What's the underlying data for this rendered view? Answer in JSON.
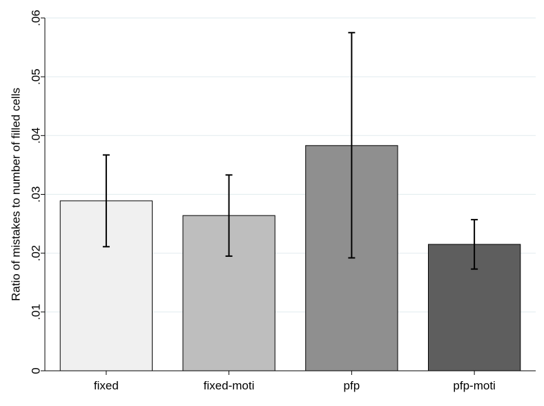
{
  "chart_data": {
    "type": "bar",
    "title": "",
    "xlabel": "",
    "ylabel": "Ratio of mistakes to number of filled cells",
    "ylim": [
      0,
      0.06
    ],
    "yticks": [
      {
        "value": 0,
        "label": "0"
      },
      {
        "value": 0.01,
        "label": ".01"
      },
      {
        "value": 0.02,
        "label": ".02"
      },
      {
        "value": 0.03,
        "label": ".03"
      },
      {
        "value": 0.04,
        "label": ".04"
      },
      {
        "value": 0.05,
        "label": ".05"
      },
      {
        "value": 0.06,
        "label": ".06"
      }
    ],
    "grid": true,
    "categories": [
      "fixed",
      "fixed-moti",
      "pfp",
      "pfp-moti"
    ],
    "values": [
      0.0289,
      0.0264,
      0.0383,
      0.0215
    ],
    "error_low": [
      0.0211,
      0.0195,
      0.0192,
      0.0173
    ],
    "error_high": [
      0.0367,
      0.0333,
      0.0575,
      0.0257
    ],
    "bar_colors": [
      "#f0f0f0",
      "#bebebe",
      "#8f8f8f",
      "#5e5e5e"
    ],
    "grid_color": "#e4eef0",
    "axis_color": "#000000"
  }
}
